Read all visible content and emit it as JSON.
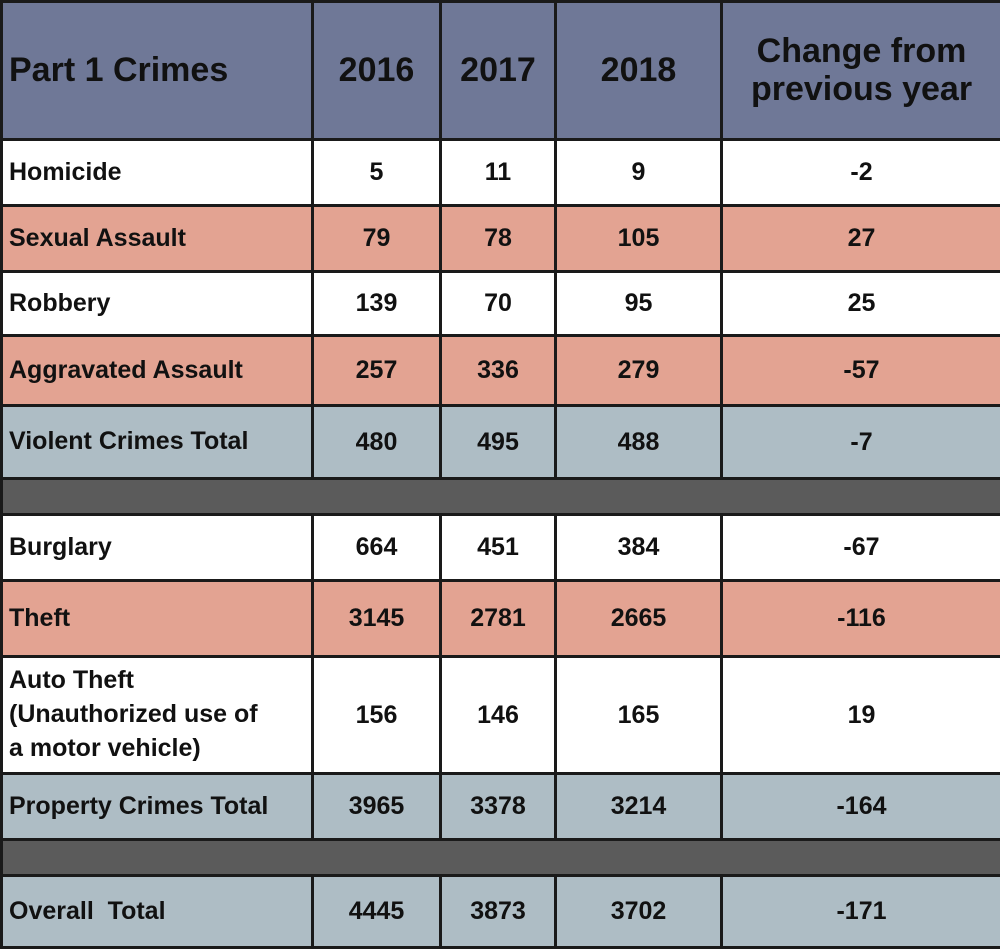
{
  "chart_data": {
    "type": "table",
    "columns": [
      "Part 1 Crimes",
      "2016",
      "2017",
      "2018",
      "Change from previous year"
    ],
    "rows": [
      {
        "label": "Homicide",
        "values": [
          "5",
          "11",
          "9",
          "-2"
        ],
        "style": "white"
      },
      {
        "label": "Sexual Assault",
        "values": [
          "79",
          "78",
          "105",
          "27"
        ],
        "style": "pink"
      },
      {
        "label": "Robbery",
        "values": [
          "139",
          "70",
          "95",
          "25"
        ],
        "style": "white"
      },
      {
        "label": "Aggravated Assault",
        "values": [
          "257",
          "336",
          "279",
          "-57"
        ],
        "style": "pink"
      },
      {
        "label": "Violent Crimes Total",
        "values": [
          "480",
          "495",
          "488",
          "-7"
        ],
        "style": "total"
      },
      {
        "separator": true
      },
      {
        "label": "Burglary",
        "values": [
          "664",
          "451",
          "384",
          "-67"
        ],
        "style": "white"
      },
      {
        "label": "Theft",
        "values": [
          "3145",
          "2781",
          "2665",
          "-116"
        ],
        "style": "pink"
      },
      {
        "label": "Auto Theft (Unauthorized use of a motor vehicle)",
        "label_lines": [
          "Auto Theft",
          "(Unauthorized use of",
          "a motor vehicle)"
        ],
        "values": [
          "156",
          "146",
          "165",
          "19"
        ],
        "style": "white"
      },
      {
        "label": "Property Crimes Total",
        "values": [
          "3965",
          "3378",
          "3214",
          "-164"
        ],
        "style": "total"
      },
      {
        "separator": true
      },
      {
        "label": "Overall  Total",
        "values": [
          "4445",
          "3873",
          "3702",
          "-171"
        ],
        "style": "total"
      }
    ],
    "colors": {
      "header": "#6f7897",
      "highlight_row": "#e3a392",
      "total_row": "#aebdc5",
      "separator": "#5b5b5b",
      "plain_row": "#ffffff"
    }
  }
}
